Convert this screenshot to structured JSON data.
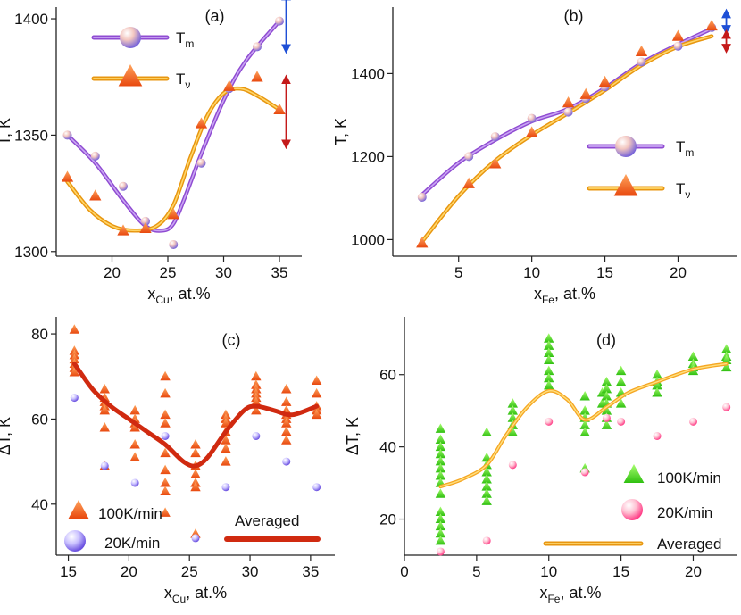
{
  "chart_data": [
    {
      "panel": "(a)",
      "type": "line",
      "xlabel": {
        "main": "x",
        "sub": "Cu",
        "tail": ", at.%"
      },
      "ylabel": "T, K",
      "xlim": [
        15,
        37
      ],
      "ylim": [
        1298,
        1405
      ],
      "xticks": [
        20,
        25,
        30,
        35
      ],
      "yticks": [
        1300,
        1350,
        1400
      ],
      "series": [
        {
          "name": "T",
          "sub": "m",
          "color": "#9b59d8",
          "marker": "sphere",
          "x": [
            16,
            18.5,
            21,
            23,
            25.5,
            28,
            30.5,
            33,
            35
          ],
          "y": [
            1350,
            1341,
            1328,
            1313,
            1303,
            1338,
            1370,
            1388,
            1399
          ],
          "curve_x": [
            16,
            18.5,
            21,
            23,
            24.5,
            25.5,
            26.5,
            28,
            30,
            32,
            35
          ],
          "curve_y": [
            1350,
            1338,
            1322,
            1311,
            1309,
            1312,
            1323,
            1342,
            1365,
            1382,
            1399
          ]
        },
        {
          "name": "T",
          "sub": "ν",
          "color": "#f5a623",
          "marker": "triangle",
          "x": [
            16,
            18.5,
            21,
            23,
            25.5,
            28,
            30.5,
            33,
            35
          ],
          "y": [
            1332,
            1324,
            1309,
            1310,
            1316,
            1355,
            1371,
            1375,
            1361
          ],
          "curve_x": [
            16,
            18,
            20,
            22,
            24,
            25.5,
            27,
            28.5,
            30,
            31.5,
            33,
            35
          ],
          "curve_y": [
            1330,
            1318,
            1311,
            1309,
            1311,
            1320,
            1340,
            1358,
            1368,
            1370,
            1367,
            1361
          ]
        }
      ],
      "error_arrows": [
        {
          "x": 35.6,
          "y1": 1387,
          "y2": 1410,
          "color": "#1e4fd6"
        },
        {
          "x": 35.6,
          "y1": 1346,
          "y2": 1374,
          "color": "#c41a1a"
        }
      ]
    },
    {
      "panel": "(b)",
      "type": "line",
      "xlabel": {
        "main": "x",
        "sub": "Fe",
        "tail": ", at.%"
      },
      "ylabel": "T, K",
      "xlim": [
        0.5,
        24
      ],
      "ylim": [
        960,
        1560
      ],
      "xticks": [
        5,
        10,
        15,
        20
      ],
      "yticks": [
        1000,
        1200,
        1400
      ],
      "series": [
        {
          "name": "T",
          "sub": "m",
          "color": "#9b59d8",
          "marker": "sphere",
          "x": [
            2.5,
            5.7,
            7.5,
            10,
            12.5,
            13.7,
            15,
            17.5,
            20,
            22.3
          ],
          "y": [
            1102,
            1200,
            1248,
            1292,
            1307,
            1340,
            1368,
            1428,
            1466,
            1511
          ],
          "curve_x": [
            2.5,
            5,
            7.5,
            10,
            12.5,
            15,
            17.5,
            20,
            22.3
          ],
          "curve_y": [
            1108,
            1185,
            1240,
            1285,
            1315,
            1365,
            1425,
            1470,
            1508
          ]
        },
        {
          "name": "T",
          "sub": "ν",
          "color": "#f5a623",
          "marker": "triangle",
          "x": [
            2.5,
            5.7,
            7.5,
            10,
            12.5,
            13.7,
            15,
            17.5,
            20,
            22.3
          ],
          "y": [
            992,
            1135,
            1183,
            1258,
            1330,
            1350,
            1380,
            1453,
            1490,
            1515
          ],
          "curve_x": [
            2.5,
            5,
            7.5,
            10,
            12.5,
            15,
            17.5,
            20,
            22.3
          ],
          "curve_y": [
            995,
            1105,
            1190,
            1252,
            1305,
            1360,
            1420,
            1465,
            1490
          ]
        }
      ],
      "error_arrows": [
        {
          "x": 23.3,
          "y1": 1505,
          "y2": 1545,
          "color": "#1e4fd6"
        },
        {
          "x": 23.3,
          "y1": 1460,
          "y2": 1495,
          "color": "#c41a1a"
        }
      ]
    },
    {
      "panel": "(c)",
      "type": "scatter",
      "xlabel": {
        "main": "x",
        "sub": "Cu",
        "tail": ", at.%"
      },
      "ylabel": "ΔT, K",
      "xlim": [
        14,
        37
      ],
      "ylim": [
        28,
        84
      ],
      "xticks": [
        15,
        20,
        25,
        30,
        35
      ],
      "yticks": [
        40,
        60,
        80
      ],
      "tri_color": "#f4651c",
      "tri_points": [
        [
          15.5,
          81
        ],
        [
          15.5,
          76
        ],
        [
          15.5,
          75
        ],
        [
          15.5,
          74
        ],
        [
          15.5,
          73
        ],
        [
          15.5,
          72
        ],
        [
          15.5,
          71
        ],
        [
          18,
          67
        ],
        [
          18,
          65
        ],
        [
          18,
          64
        ],
        [
          18,
          63
        ],
        [
          18,
          62
        ],
        [
          18,
          58
        ],
        [
          18,
          49
        ],
        [
          20.5,
          62
        ],
        [
          20.5,
          60
        ],
        [
          20.5,
          59
        ],
        [
          20.5,
          58
        ],
        [
          20.5,
          54
        ],
        [
          20.5,
          51
        ],
        [
          23,
          70
        ],
        [
          23,
          66
        ],
        [
          23,
          61
        ],
        [
          23,
          59
        ],
        [
          23,
          52
        ],
        [
          23,
          48
        ],
        [
          23,
          45
        ],
        [
          23,
          43
        ],
        [
          23,
          38
        ],
        [
          25.5,
          54
        ],
        [
          25.5,
          52
        ],
        [
          25.5,
          49
        ],
        [
          25.5,
          47
        ],
        [
          25.5,
          45
        ],
        [
          25.5,
          44
        ],
        [
          25.5,
          33
        ],
        [
          28,
          61
        ],
        [
          28,
          60
        ],
        [
          28,
          59
        ],
        [
          28,
          57
        ],
        [
          28,
          55
        ],
        [
          28,
          53
        ],
        [
          28,
          50
        ],
        [
          30.5,
          70
        ],
        [
          30.5,
          68
        ],
        [
          30.5,
          67
        ],
        [
          30.5,
          66
        ],
        [
          30.5,
          65
        ],
        [
          30.5,
          64
        ],
        [
          30.5,
          62
        ],
        [
          33,
          67
        ],
        [
          33,
          64
        ],
        [
          33,
          62
        ],
        [
          33,
          61
        ],
        [
          33,
          60
        ],
        [
          33,
          59
        ],
        [
          33,
          57
        ],
        [
          33,
          55
        ],
        [
          35.5,
          69
        ],
        [
          35.5,
          66
        ],
        [
          35.5,
          63
        ],
        [
          35.5,
          62
        ],
        [
          35.5,
          61
        ]
      ],
      "sphere_color": "#8c78e8",
      "sphere_points": [
        [
          15.5,
          65
        ],
        [
          18,
          49
        ],
        [
          20.5,
          45
        ],
        [
          23,
          56
        ],
        [
          25.5,
          32
        ],
        [
          28,
          44
        ],
        [
          30.5,
          56
        ],
        [
          33,
          50
        ],
        [
          35.5,
          44
        ]
      ],
      "curve_color": "#d02a10",
      "curve_x": [
        15.5,
        17,
        18.5,
        20,
        21.5,
        23,
        24.5,
        25.5,
        26.5,
        28,
        29.5,
        30.5,
        32,
        33.5,
        35.5
      ],
      "curve_y": [
        73,
        67,
        63,
        60,
        57,
        54,
        50,
        49,
        51,
        57,
        62,
        63,
        62,
        61,
        63
      ],
      "legend": [
        {
          "label": "100K/min",
          "marker": "triangle"
        },
        {
          "label": "20K/min",
          "marker": "sphere"
        },
        {
          "label": "Averaged",
          "marker": "line"
        }
      ]
    },
    {
      "panel": "(d)",
      "type": "scatter",
      "xlabel": {
        "main": "x",
        "sub": "Fe",
        "tail": ", at.%"
      },
      "ylabel": "ΔT, K",
      "xlim": [
        0,
        23
      ],
      "ylim": [
        10,
        76
      ],
      "xticks": [
        0,
        5,
        10,
        15,
        20
      ],
      "yticks": [
        20,
        40,
        60
      ],
      "tri_color": "#3ecf1a",
      "tri_points": [
        [
          2.5,
          45
        ],
        [
          2.5,
          42
        ],
        [
          2.5,
          40
        ],
        [
          2.5,
          38
        ],
        [
          2.5,
          36
        ],
        [
          2.5,
          34
        ],
        [
          2.5,
          32
        ],
        [
          2.5,
          30
        ],
        [
          2.5,
          27
        ],
        [
          2.5,
          22
        ],
        [
          2.5,
          20
        ],
        [
          2.5,
          18
        ],
        [
          2.5,
          16
        ],
        [
          2.5,
          14
        ],
        [
          5.7,
          44
        ],
        [
          5.7,
          37
        ],
        [
          5.7,
          35
        ],
        [
          5.7,
          33
        ],
        [
          5.7,
          31
        ],
        [
          5.7,
          29
        ],
        [
          5.7,
          27
        ],
        [
          5.7,
          25
        ],
        [
          7.5,
          52
        ],
        [
          7.5,
          50
        ],
        [
          7.5,
          48
        ],
        [
          7.5,
          46
        ],
        [
          7.5,
          44
        ],
        [
          10,
          70
        ],
        [
          10,
          68
        ],
        [
          10,
          66
        ],
        [
          10,
          64
        ],
        [
          10,
          61
        ],
        [
          10,
          59
        ],
        [
          10,
          57
        ],
        [
          12.5,
          54
        ],
        [
          12.5,
          50
        ],
        [
          12.5,
          48
        ],
        [
          12.5,
          46
        ],
        [
          12.5,
          44
        ],
        [
          12.5,
          34
        ],
        [
          13.7,
          55
        ],
        [
          13.7,
          52
        ],
        [
          14,
          58
        ],
        [
          14,
          56
        ],
        [
          14,
          54
        ],
        [
          14,
          52
        ],
        [
          14,
          50
        ],
        [
          14,
          48
        ],
        [
          14,
          46
        ],
        [
          15,
          61
        ],
        [
          15,
          58
        ],
        [
          15,
          55
        ],
        [
          15,
          52
        ],
        [
          17.5,
          60
        ],
        [
          17.5,
          58
        ],
        [
          17.5,
          57
        ],
        [
          17.5,
          55
        ],
        [
          20,
          65
        ],
        [
          20,
          63
        ],
        [
          20,
          62
        ],
        [
          20,
          61
        ],
        [
          22.3,
          67
        ],
        [
          22.3,
          65
        ],
        [
          22.3,
          64
        ],
        [
          22.3,
          62
        ]
      ],
      "sphere_color": "#ff6fa0",
      "sphere_points": [
        [
          2.5,
          11
        ],
        [
          5.7,
          14
        ],
        [
          7.5,
          35
        ],
        [
          10,
          47
        ],
        [
          12.5,
          33
        ],
        [
          14,
          48
        ],
        [
          15,
          47
        ],
        [
          17.5,
          43
        ],
        [
          20,
          47
        ],
        [
          22.3,
          51
        ]
      ],
      "curve_color": "#f5a623",
      "curve_x": [
        2.5,
        4,
        5.7,
        7,
        8.5,
        10,
        11.3,
        12.5,
        14,
        15.5,
        17.5,
        20,
        22.3
      ],
      "curve_y": [
        29,
        31,
        35,
        43,
        51,
        55.5,
        53,
        47.5,
        51,
        55,
        58,
        61.5,
        63
      ],
      "legend": [
        {
          "label": "100K/min",
          "marker": "triangle"
        },
        {
          "label": "20K/min",
          "marker": "sphere"
        },
        {
          "label": "Averaged",
          "marker": "line"
        }
      ]
    }
  ]
}
